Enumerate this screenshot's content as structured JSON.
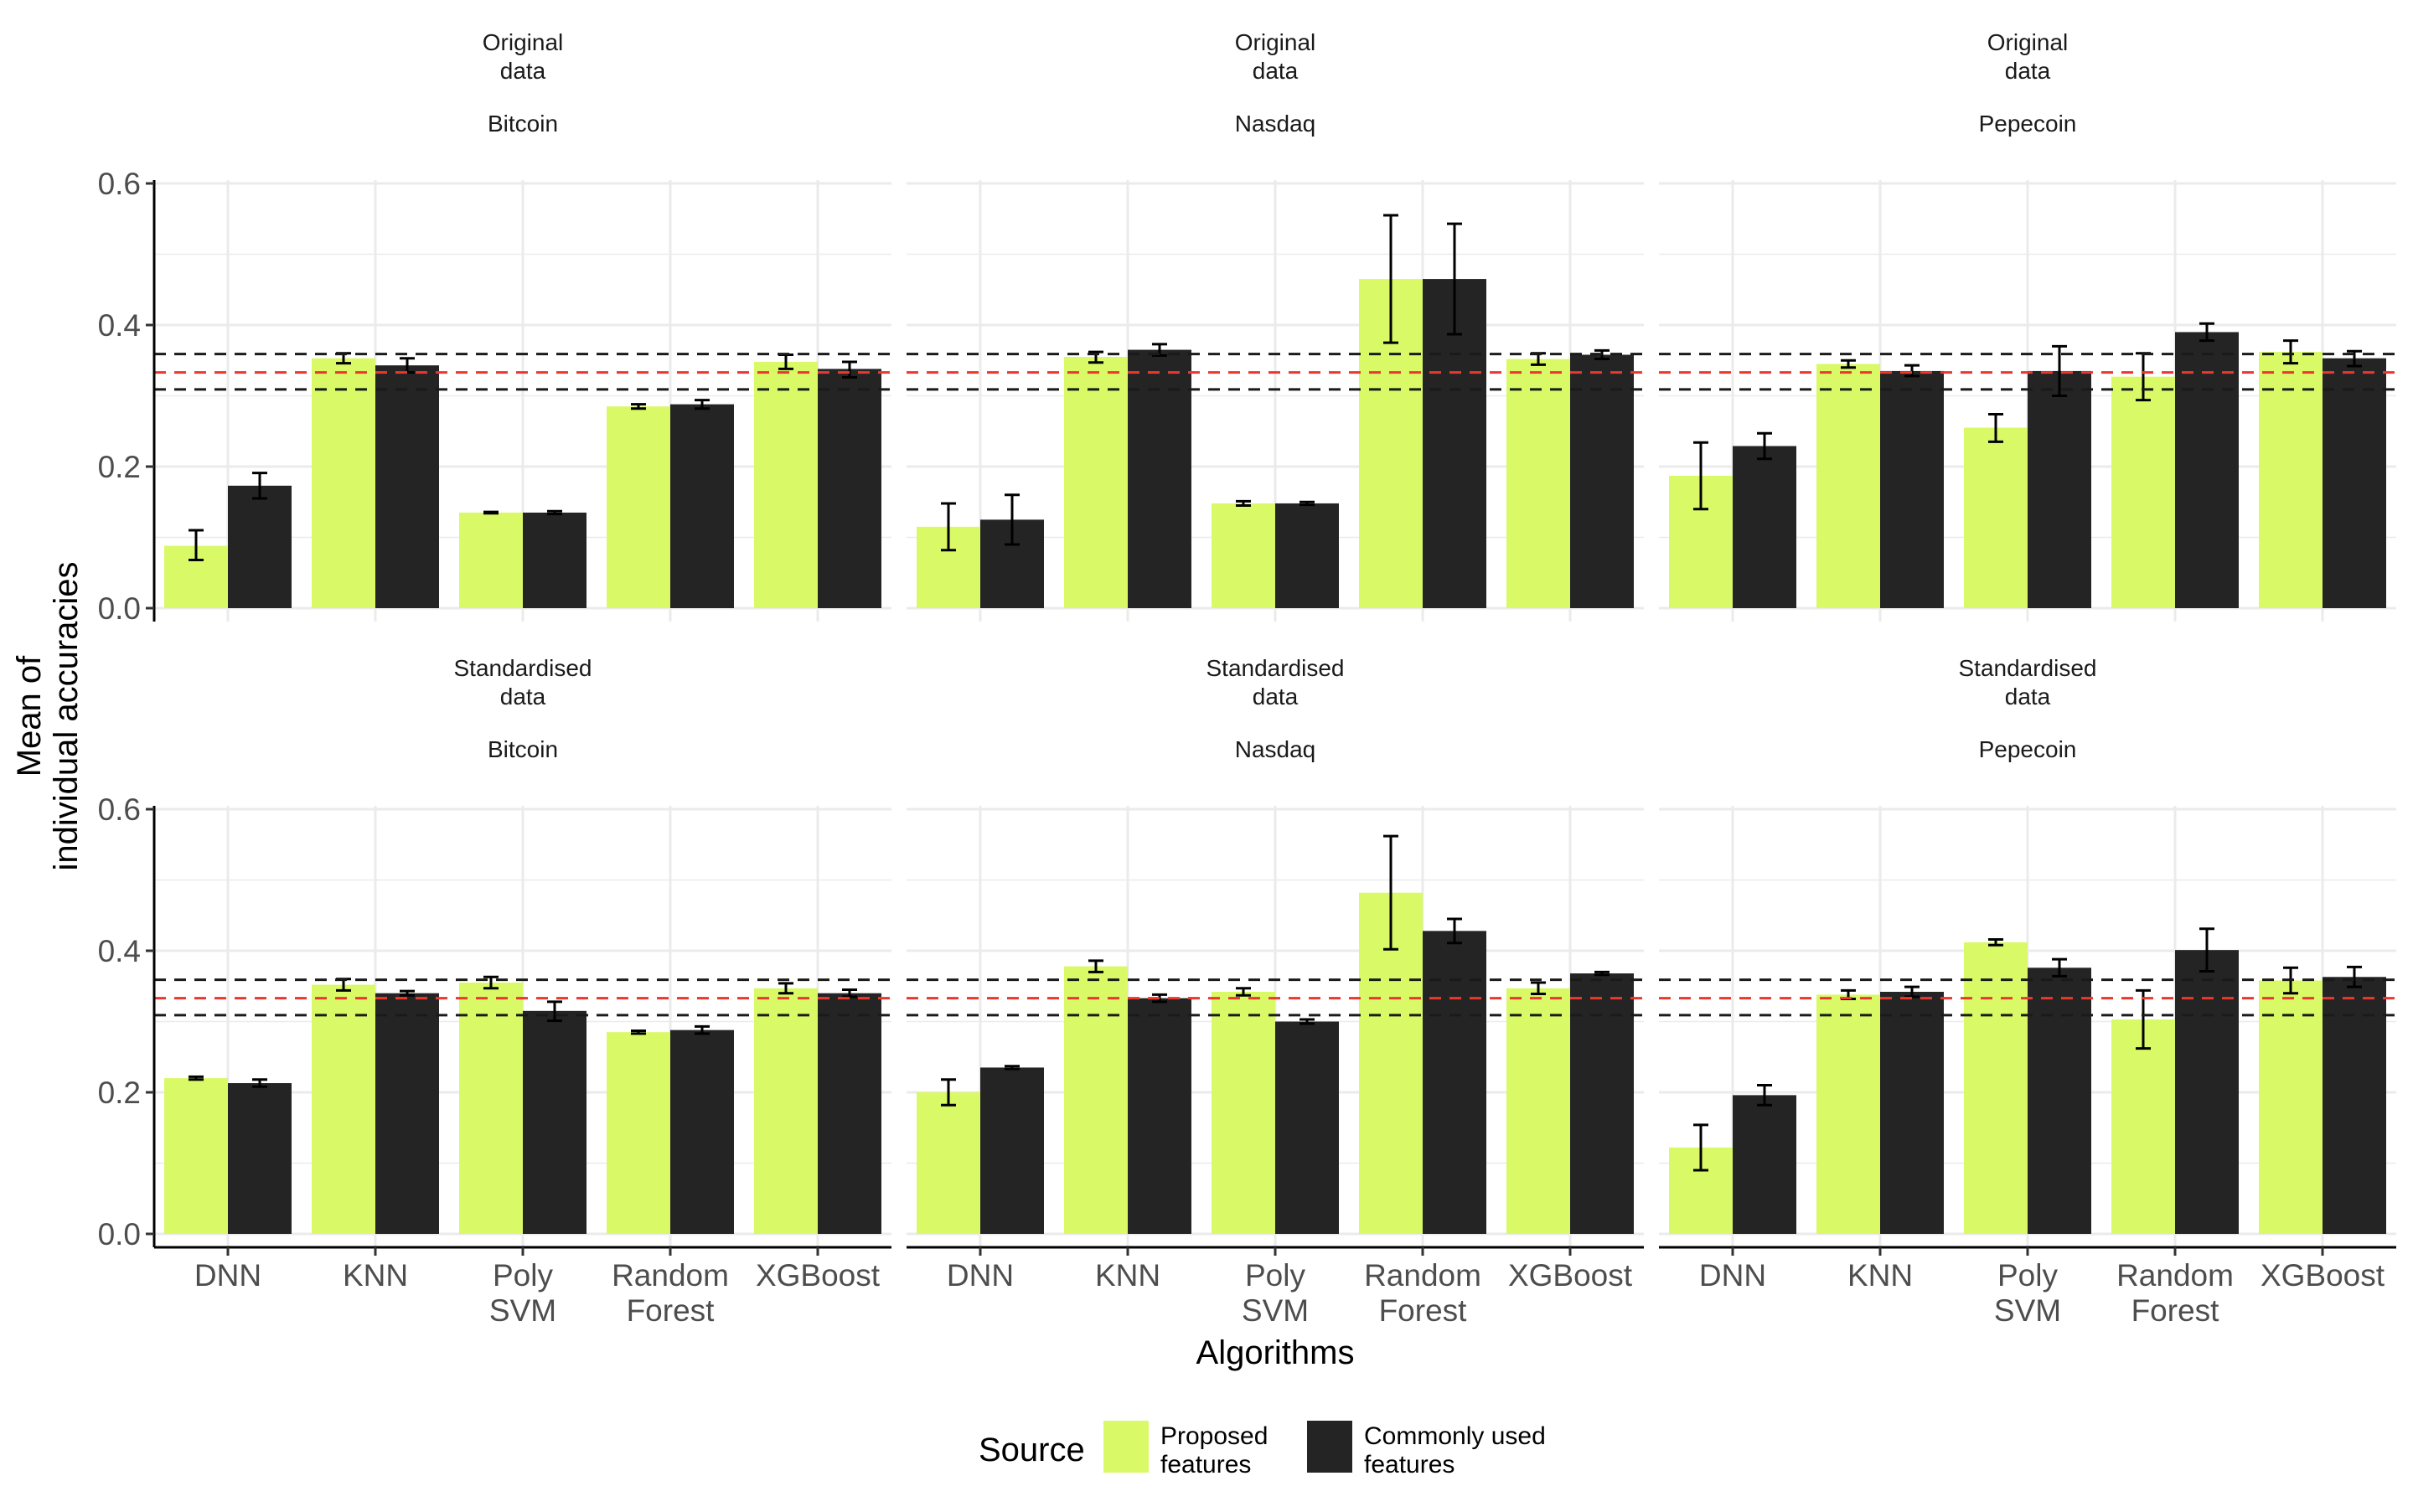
{
  "chart_data": {
    "type": "bar",
    "xlabel": "Algorithms",
    "ylabel": [
      "Mean of",
      "individual accuracies"
    ],
    "ylim": [
      0,
      0.6
    ],
    "yticks": [
      "0.0",
      "0.2",
      "0.4",
      "0.6"
    ],
    "categories": [
      [
        "DNN"
      ],
      [
        "KNN"
      ],
      [
        "Poly",
        "SVM"
      ],
      [
        "Random",
        "Forest"
      ],
      [
        "XGBoost"
      ]
    ],
    "reference_lines": {
      "black_dashed": [
        0.309,
        0.359
      ],
      "red_dashed": [
        0.333
      ]
    },
    "colors": {
      "proposed": "#d9f966",
      "common": "#242424",
      "red_line": "#e8382f",
      "black_line": "#1a1a1a",
      "grid": "#ebebeb"
    },
    "legend": {
      "title": "Source",
      "position": "bottom",
      "entries": [
        {
          "key": "proposed",
          "lines": [
            "Proposed",
            "features"
          ]
        },
        {
          "key": "common",
          "lines": [
            "Commonly used",
            "features"
          ]
        }
      ]
    },
    "panels": [
      {
        "row": 0,
        "col": 0,
        "strip_top": [
          "Original",
          "data"
        ],
        "strip_bottom": "Bitcoin",
        "proposed": [
          {
            "v": 0.088,
            "lo": 0.068,
            "hi": 0.11
          },
          {
            "v": 0.353,
            "lo": 0.346,
            "hi": 0.36
          },
          {
            "v": 0.135,
            "lo": 0.134,
            "hi": 0.136
          },
          {
            "v": 0.285,
            "lo": 0.282,
            "hi": 0.288
          },
          {
            "v": 0.348,
            "lo": 0.338,
            "hi": 0.358
          }
        ],
        "common": [
          {
            "v": 0.173,
            "lo": 0.155,
            "hi": 0.191
          },
          {
            "v": 0.343,
            "lo": 0.333,
            "hi": 0.353
          },
          {
            "v": 0.135,
            "lo": 0.133,
            "hi": 0.137
          },
          {
            "v": 0.288,
            "lo": 0.282,
            "hi": 0.294
          },
          {
            "v": 0.338,
            "lo": 0.326,
            "hi": 0.348
          }
        ]
      },
      {
        "row": 0,
        "col": 1,
        "strip_top": [
          "Original",
          "data"
        ],
        "strip_bottom": "Nasdaq",
        "proposed": [
          {
            "v": 0.115,
            "lo": 0.082,
            "hi": 0.148
          },
          {
            "v": 0.355,
            "lo": 0.347,
            "hi": 0.362
          },
          {
            "v": 0.148,
            "lo": 0.145,
            "hi": 0.151
          },
          {
            "v": 0.465,
            "lo": 0.375,
            "hi": 0.555
          },
          {
            "v": 0.352,
            "lo": 0.344,
            "hi": 0.36
          }
        ],
        "common": [
          {
            "v": 0.125,
            "lo": 0.09,
            "hi": 0.16
          },
          {
            "v": 0.365,
            "lo": 0.357,
            "hi": 0.373
          },
          {
            "v": 0.148,
            "lo": 0.146,
            "hi": 0.15
          },
          {
            "v": 0.465,
            "lo": 0.387,
            "hi": 0.543
          },
          {
            "v": 0.358,
            "lo": 0.352,
            "hi": 0.364
          }
        ]
      },
      {
        "row": 0,
        "col": 2,
        "strip_top": [
          "Original",
          "data"
        ],
        "strip_bottom": "Pepecoin",
        "proposed": [
          {
            "v": 0.187,
            "lo": 0.14,
            "hi": 0.234
          },
          {
            "v": 0.345,
            "lo": 0.34,
            "hi": 0.35
          },
          {
            "v": 0.255,
            "lo": 0.235,
            "hi": 0.274
          },
          {
            "v": 0.327,
            "lo": 0.294,
            "hi": 0.36
          },
          {
            "v": 0.362,
            "lo": 0.346,
            "hi": 0.378
          }
        ],
        "common": [
          {
            "v": 0.229,
            "lo": 0.211,
            "hi": 0.247
          },
          {
            "v": 0.335,
            "lo": 0.328,
            "hi": 0.343
          },
          {
            "v": 0.335,
            "lo": 0.3,
            "hi": 0.37
          },
          {
            "v": 0.39,
            "lo": 0.378,
            "hi": 0.402
          },
          {
            "v": 0.353,
            "lo": 0.342,
            "hi": 0.363
          }
        ]
      },
      {
        "row": 1,
        "col": 0,
        "strip_top": [
          "Standardised",
          "data"
        ],
        "strip_bottom": "Bitcoin",
        "proposed": [
          {
            "v": 0.22,
            "lo": 0.218,
            "hi": 0.222
          },
          {
            "v": 0.352,
            "lo": 0.344,
            "hi": 0.36
          },
          {
            "v": 0.355,
            "lo": 0.347,
            "hi": 0.363
          },
          {
            "v": 0.285,
            "lo": 0.283,
            "hi": 0.287
          },
          {
            "v": 0.347,
            "lo": 0.34,
            "hi": 0.354
          }
        ],
        "common": [
          {
            "v": 0.213,
            "lo": 0.208,
            "hi": 0.218
          },
          {
            "v": 0.34,
            "lo": 0.337,
            "hi": 0.343
          },
          {
            "v": 0.315,
            "lo": 0.301,
            "hi": 0.328
          },
          {
            "v": 0.288,
            "lo": 0.283,
            "hi": 0.293
          },
          {
            "v": 0.34,
            "lo": 0.335,
            "hi": 0.345
          }
        ]
      },
      {
        "row": 1,
        "col": 1,
        "strip_top": [
          "Standardised",
          "data"
        ],
        "strip_bottom": "Nasdaq",
        "proposed": [
          {
            "v": 0.2,
            "lo": 0.182,
            "hi": 0.218
          },
          {
            "v": 0.378,
            "lo": 0.37,
            "hi": 0.386
          },
          {
            "v": 0.342,
            "lo": 0.337,
            "hi": 0.347
          },
          {
            "v": 0.482,
            "lo": 0.402,
            "hi": 0.562
          },
          {
            "v": 0.347,
            "lo": 0.339,
            "hi": 0.355
          }
        ],
        "common": [
          {
            "v": 0.235,
            "lo": 0.233,
            "hi": 0.237
          },
          {
            "v": 0.333,
            "lo": 0.328,
            "hi": 0.338
          },
          {
            "v": 0.3,
            "lo": 0.297,
            "hi": 0.303
          },
          {
            "v": 0.428,
            "lo": 0.411,
            "hi": 0.445
          },
          {
            "v": 0.368,
            "lo": 0.366,
            "hi": 0.37
          }
        ]
      },
      {
        "row": 1,
        "col": 2,
        "strip_top": [
          "Standardised",
          "data"
        ],
        "strip_bottom": "Pepecoin",
        "proposed": [
          {
            "v": 0.122,
            "lo": 0.09,
            "hi": 0.154
          },
          {
            "v": 0.338,
            "lo": 0.332,
            "hi": 0.344
          },
          {
            "v": 0.412,
            "lo": 0.408,
            "hi": 0.416
          },
          {
            "v": 0.303,
            "lo": 0.262,
            "hi": 0.344
          },
          {
            "v": 0.358,
            "lo": 0.34,
            "hi": 0.376
          }
        ],
        "common": [
          {
            "v": 0.196,
            "lo": 0.182,
            "hi": 0.21
          },
          {
            "v": 0.342,
            "lo": 0.335,
            "hi": 0.349
          },
          {
            "v": 0.376,
            "lo": 0.364,
            "hi": 0.388
          },
          {
            "v": 0.401,
            "lo": 0.371,
            "hi": 0.431
          },
          {
            "v": 0.363,
            "lo": 0.349,
            "hi": 0.377
          }
        ]
      }
    ]
  }
}
